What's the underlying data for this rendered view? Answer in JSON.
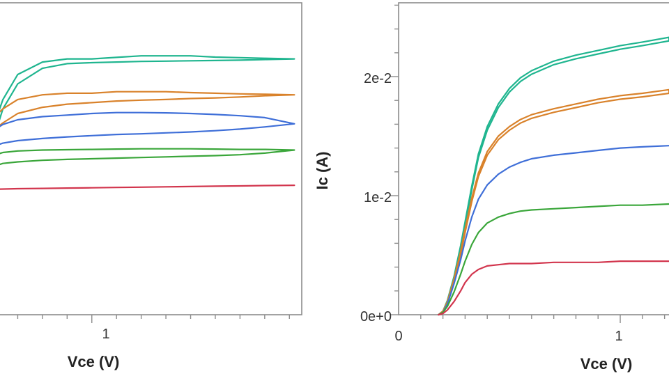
{
  "colors": {
    "teal": "#1fb58f",
    "orange": "#d9822b",
    "blue": "#3f6fd8",
    "green": "#3aa63a",
    "red": "#d2354d",
    "frame": "#8c8c8c"
  },
  "chart_data": [
    {
      "type": "line",
      "title": "",
      "xlabel": "Vce (V)",
      "ylabel": "",
      "xlim": [
        0.6,
        1.85
      ],
      "ylim": [
        0,
        1
      ],
      "x_ticks": [
        {
          "value": 1,
          "label": "1"
        }
      ],
      "grid": false,
      "legend": "none",
      "series": [
        {
          "color": "#1fb58f",
          "hysteresis": true,
          "x": [
            0.6,
            0.64,
            0.7,
            0.8,
            0.9,
            1.0,
            1.1,
            1.2,
            1.3,
            1.4,
            1.5,
            1.6,
            1.7,
            1.82
          ],
          "y_upper": [
            0.6,
            0.69,
            0.77,
            0.81,
            0.82,
            0.82,
            0.825,
            0.83,
            0.83,
            0.83,
            0.826,
            0.824,
            0.822,
            0.82
          ],
          "y_lower": [
            0.56,
            0.66,
            0.74,
            0.79,
            0.805,
            0.808,
            0.81,
            0.812,
            0.813,
            0.814,
            0.815,
            0.816,
            0.818,
            0.82
          ]
        },
        {
          "color": "#d9822b",
          "hysteresis": true,
          "x": [
            0.6,
            0.64,
            0.7,
            0.8,
            0.9,
            1.0,
            1.1,
            1.2,
            1.3,
            1.4,
            1.5,
            1.6,
            1.7,
            1.82
          ],
          "y_upper": [
            0.63,
            0.66,
            0.69,
            0.705,
            0.71,
            0.71,
            0.715,
            0.715,
            0.715,
            0.712,
            0.71,
            0.708,
            0.707,
            0.705
          ],
          "y_lower": [
            0.59,
            0.615,
            0.645,
            0.665,
            0.675,
            0.68,
            0.685,
            0.688,
            0.69,
            0.693,
            0.695,
            0.698,
            0.702,
            0.705
          ]
        },
        {
          "color": "#3f6fd8",
          "hysteresis": true,
          "x": [
            0.6,
            0.64,
            0.7,
            0.8,
            0.9,
            1.0,
            1.1,
            1.2,
            1.3,
            1.4,
            1.5,
            1.6,
            1.7,
            1.82
          ],
          "y_upper": [
            0.59,
            0.61,
            0.625,
            0.635,
            0.64,
            0.645,
            0.648,
            0.648,
            0.647,
            0.645,
            0.642,
            0.638,
            0.632,
            0.612
          ],
          "y_lower": [
            0.54,
            0.55,
            0.558,
            0.565,
            0.57,
            0.574,
            0.578,
            0.58,
            0.583,
            0.586,
            0.59,
            0.595,
            0.602,
            0.612
          ]
        },
        {
          "color": "#3aa63a",
          "hysteresis": true,
          "x": [
            0.6,
            0.64,
            0.7,
            0.8,
            0.9,
            1.0,
            1.1,
            1.2,
            1.3,
            1.4,
            1.5,
            1.6,
            1.7,
            1.82
          ],
          "y_upper": [
            0.51,
            0.52,
            0.525,
            0.528,
            0.529,
            0.53,
            0.531,
            0.532,
            0.532,
            0.532,
            0.531,
            0.53,
            0.53,
            0.528
          ],
          "y_lower": [
            0.475,
            0.485,
            0.49,
            0.495,
            0.498,
            0.5,
            0.502,
            0.504,
            0.506,
            0.508,
            0.51,
            0.513,
            0.518,
            0.528
          ]
        },
        {
          "color": "#d2354d",
          "hysteresis": false,
          "x": [
            0.6,
            0.7,
            0.8,
            0.9,
            1.0,
            1.1,
            1.2,
            1.3,
            1.4,
            1.5,
            1.6,
            1.7,
            1.82
          ],
          "y_upper": [
            0.402,
            0.404,
            0.405,
            0.406,
            0.407,
            0.408,
            0.409,
            0.41,
            0.411,
            0.412,
            0.413,
            0.414,
            0.415
          ]
        }
      ]
    },
    {
      "type": "line",
      "title": "",
      "xlabel": "Vce (V)",
      "ylabel": "Ic (A)",
      "xlim": [
        0,
        1.22
      ],
      "ylim": [
        0,
        0.0262
      ],
      "x_ticks": [
        {
          "value": 0,
          "label": "0"
        },
        {
          "value": 1,
          "label": "1"
        }
      ],
      "y_ticks": [
        {
          "value": 0,
          "label": "0e+0"
        },
        {
          "value": 0.01,
          "label": "1e-2"
        },
        {
          "value": 0.02,
          "label": "2e-2"
        }
      ],
      "grid": false,
      "legend": "none",
      "series": [
        {
          "color": "#1fb58f",
          "hysteresis": true,
          "x": [
            0.18,
            0.2,
            0.22,
            0.25,
            0.28,
            0.3,
            0.33,
            0.36,
            0.4,
            0.45,
            0.5,
            0.55,
            0.6,
            0.7,
            0.8,
            0.9,
            1.0,
            1.1,
            1.22
          ],
          "y_upper": [
            0,
            0.0003,
            0.0012,
            0.0032,
            0.0058,
            0.0078,
            0.0108,
            0.0135,
            0.0158,
            0.0177,
            0.019,
            0.0199,
            0.0205,
            0.0213,
            0.0218,
            0.0222,
            0.0226,
            0.0229,
            0.0233
          ],
          "y_lower": [
            0,
            0.0002,
            0.001,
            0.003,
            0.0055,
            0.0075,
            0.0105,
            0.0132,
            0.0155,
            0.0174,
            0.0187,
            0.0196,
            0.0202,
            0.021,
            0.0215,
            0.0219,
            0.0223,
            0.0226,
            0.023
          ]
        },
        {
          "color": "#d9822b",
          "hysteresis": true,
          "x": [
            0.18,
            0.2,
            0.22,
            0.25,
            0.28,
            0.3,
            0.33,
            0.36,
            0.4,
            0.45,
            0.5,
            0.55,
            0.6,
            0.7,
            0.8,
            0.9,
            1.0,
            1.1,
            1.22
          ],
          "y_upper": [
            0,
            0.0003,
            0.0011,
            0.003,
            0.0053,
            0.0072,
            0.0098,
            0.0119,
            0.0137,
            0.015,
            0.0158,
            0.0164,
            0.0168,
            0.0173,
            0.0177,
            0.0181,
            0.0184,
            0.0186,
            0.0189
          ],
          "y_lower": [
            0,
            0.0002,
            0.001,
            0.0028,
            0.005,
            0.0069,
            0.0095,
            0.0116,
            0.0134,
            0.0147,
            0.0155,
            0.0161,
            0.0165,
            0.017,
            0.0174,
            0.0178,
            0.0181,
            0.0183,
            0.0186
          ]
        },
        {
          "color": "#3f6fd8",
          "hysteresis": false,
          "x": [
            0.18,
            0.2,
            0.22,
            0.25,
            0.28,
            0.3,
            0.33,
            0.36,
            0.4,
            0.45,
            0.5,
            0.55,
            0.6,
            0.7,
            0.8,
            0.9,
            1.0,
            1.1,
            1.22
          ],
          "y_upper": [
            0,
            0.0002,
            0.0009,
            0.0026,
            0.0046,
            0.0062,
            0.0082,
            0.0097,
            0.0109,
            0.0118,
            0.0124,
            0.0128,
            0.0131,
            0.0134,
            0.0136,
            0.0138,
            0.014,
            0.0141,
            0.0142
          ]
        },
        {
          "color": "#3aa63a",
          "hysteresis": false,
          "x": [
            0.18,
            0.2,
            0.22,
            0.25,
            0.28,
            0.3,
            0.33,
            0.36,
            0.4,
            0.45,
            0.5,
            0.55,
            0.6,
            0.7,
            0.8,
            0.9,
            1.0,
            1.1,
            1.22
          ],
          "y_upper": [
            0,
            0.0002,
            0.0007,
            0.0019,
            0.0034,
            0.0045,
            0.0059,
            0.0069,
            0.0077,
            0.0082,
            0.0085,
            0.0087,
            0.0088,
            0.0089,
            0.009,
            0.0091,
            0.0092,
            0.0092,
            0.0093
          ]
        },
        {
          "color": "#d2354d",
          "hysteresis": false,
          "x": [
            0.18,
            0.2,
            0.22,
            0.25,
            0.28,
            0.3,
            0.33,
            0.36,
            0.4,
            0.45,
            0.5,
            0.6,
            0.7,
            0.8,
            0.9,
            1.0,
            1.1,
            1.22
          ],
          "y_upper": [
            0,
            0.0001,
            0.0004,
            0.0011,
            0.002,
            0.0027,
            0.0034,
            0.0038,
            0.0041,
            0.0042,
            0.0043,
            0.0043,
            0.0044,
            0.0044,
            0.0044,
            0.0045,
            0.0045,
            0.0045
          ]
        }
      ]
    }
  ]
}
